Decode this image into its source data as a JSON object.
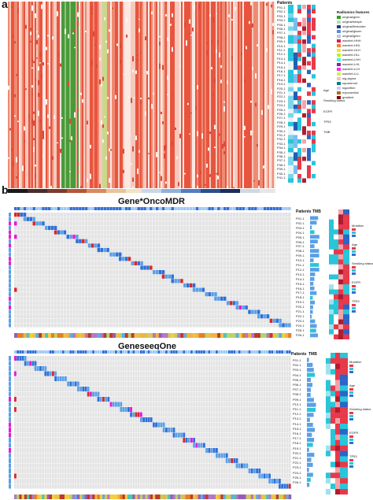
{
  "panel_a": {
    "letter": "a",
    "patients_label": "Patients",
    "legend_title": "Radiomics features",
    "patients": [
      "P01-1",
      "P02-1",
      "P03-1",
      "P04-1",
      "P05-1",
      "P06-1",
      "P07-1",
      "P08-1",
      "P09-1",
      "P10-1",
      "P11-1",
      "P12-1",
      "P13-1",
      "P14-1",
      "P15-1",
      "P16-1",
      "P17-1",
      "P18-1",
      "P19-1",
      "P20-1",
      "P21-1",
      "P22-1",
      "P23-1",
      "P24-1",
      "P25-1",
      "P26-1",
      "P27-1",
      "P28-1",
      "P29-1",
      "P30-1",
      "P31-1",
      "P32-1",
      "P33-1",
      "P34-1",
      "P35-1",
      "P36-1",
      "P37-1",
      "P38-1",
      "P39-1",
      "P40-1",
      "P41-1"
    ],
    "annotation_labels": [
      "Age",
      "Smoking status",
      "EGFR",
      "TP53",
      "TMB"
    ],
    "legend_items": [
      "original/glcm",
      "original/shape",
      "original/firstorder",
      "original/glszm",
      "original/glrlm",
      "wavelet-HHH",
      "wavelet-HHL",
      "wavelet-HLH",
      "wavelet-HLL",
      "wavelet-LHH",
      "wavelet-LHL",
      "wavelet-LLH",
      "wavelet-LLL",
      "log-sigma",
      "squareroot",
      "logarithm",
      "exponential",
      "gradient"
    ]
  },
  "panel_b": {
    "letter": "b",
    "sub1": {
      "title": "Gene*OncoMDR",
      "patients_label": "Patients",
      "tmb_label": "TMB",
      "patients": [
        "P01-1",
        "P02-1",
        "P03-1",
        "P04-1",
        "P05-1",
        "P06-1",
        "P07-1",
        "P08-1",
        "P09-1",
        "P10-1",
        "P11-1",
        "P12-1",
        "P13-1",
        "P14-1",
        "P15-1",
        "P16-1",
        "P17-1",
        "P18-1",
        "P19-1",
        "P20-1",
        "P21-1",
        "P22-1",
        "P23-1",
        "P24-1",
        "P25-1",
        "P26-1"
      ],
      "legend_labels": [
        "Mutation",
        "Age",
        "Smoking status",
        "EGFR",
        "TP53"
      ]
    },
    "sub2": {
      "title": "GeneseeqOne",
      "patients_label": "Patients",
      "tmb_label": "TMB",
      "patients": [
        "P01-1",
        "P02-1",
        "P03-1",
        "P04-1",
        "P05-1",
        "P06-1",
        "P07-1",
        "P08-1",
        "P09-1",
        "P10-1",
        "P11-1",
        "P12-1",
        "P13-1",
        "P14-1",
        "P15-1",
        "P16-1",
        "P17-1",
        "P18-1",
        "P19-1",
        "P20-1",
        "P21-1",
        "P22-1",
        "P23-1",
        "P24-1",
        "P25-1",
        "P26-1"
      ],
      "legend_labels": [
        "Mutation",
        "Age",
        "Smoking status",
        "EGFR",
        "TP53"
      ]
    }
  },
  "colors": {
    "heat_red": "#e8553f",
    "heat_pink": "#f6c9bd",
    "heat_green": "#4a9a3a",
    "mut_blue": "#2f6fd6",
    "mut_light": "#5aa0e6",
    "mut_red": "#d62728",
    "mut_magenta": "#e41ad6",
    "anno_cyan": "#29c5d8",
    "anno_red": "#e8394a"
  }
}
